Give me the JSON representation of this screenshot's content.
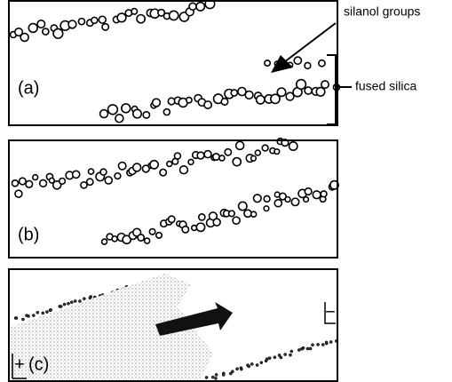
{
  "panels": [
    {
      "label": "(a)"
    },
    {
      "label": "(b)"
    },
    {
      "label": "(c)",
      "charge_left": "+",
      "charge_right": "−"
    }
  ],
  "annotations": {
    "silanol": "silanol groups",
    "silica": "fused silica"
  }
}
